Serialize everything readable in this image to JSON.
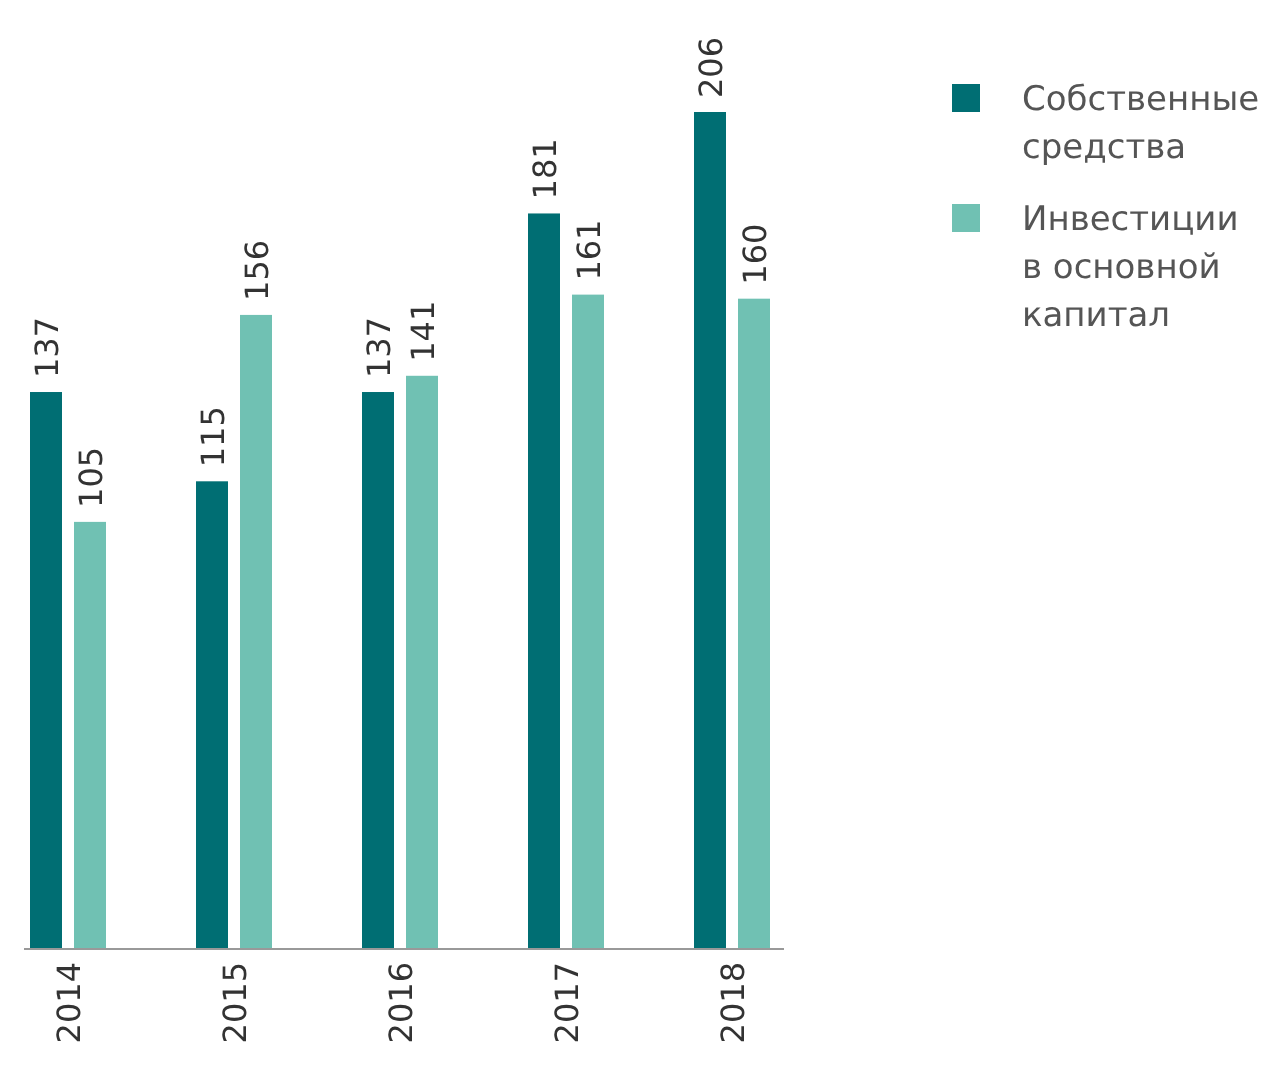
{
  "chart_data": {
    "type": "bar",
    "categories": [
      "2014",
      "2015",
      "2016",
      "2017",
      "2018"
    ],
    "series": [
      {
        "name": "Собственные средства",
        "color": "#006e73",
        "values": [
          137,
          115,
          137,
          181,
          206
        ]
      },
      {
        "name": "Инвестиции в основной капитал",
        "color": "#70c1b3",
        "values": [
          105,
          156,
          141,
          161,
          160
        ]
      }
    ],
    "data_labels": true,
    "legend": "top right"
  }
}
